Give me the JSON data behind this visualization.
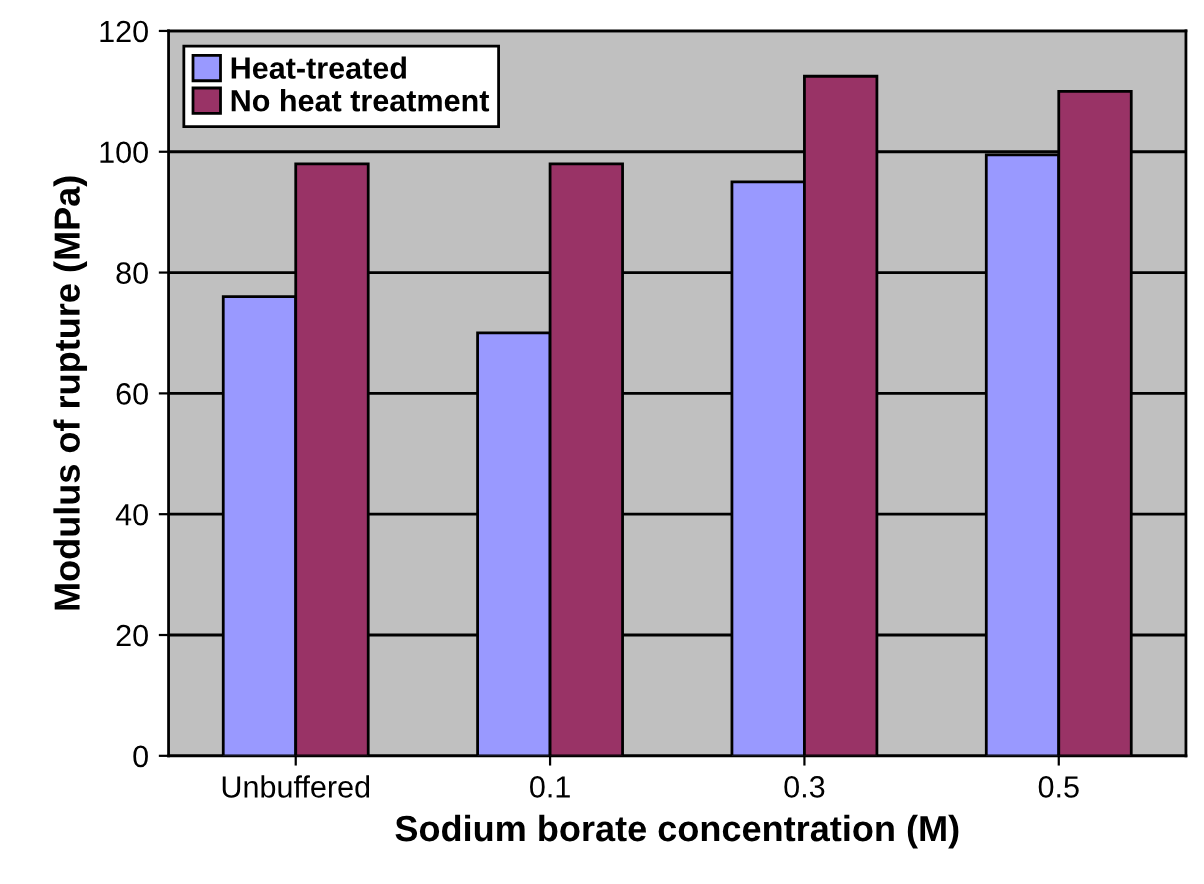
{
  "chart_data": {
    "type": "bar",
    "xlabel": "Sodium borate concentration (M)",
    "ylabel": "Modulus of rupture (MPa)",
    "categories": [
      "Unbuffered",
      "0.1",
      "0.3",
      "0.5"
    ],
    "series": [
      {
        "name": "Heat-treated",
        "color": "#9999ff",
        "values": [
          76,
          70,
          95,
          99.5
        ]
      },
      {
        "name": "No heat treatment",
        "color": "#993366",
        "values": [
          98,
          98,
          112.5,
          110
        ]
      }
    ],
    "ylim": [
      0,
      120
    ],
    "yticks": [
      0,
      20,
      40,
      60,
      80,
      100,
      120
    ],
    "grid": "y",
    "legend": "top left"
  }
}
